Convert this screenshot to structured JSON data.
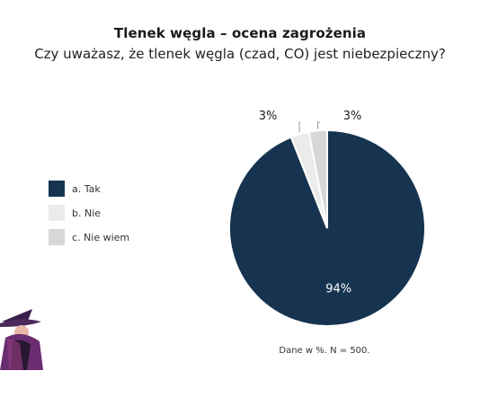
{
  "title": "Tlenek węgla – ocena zagrożenia",
  "subtitle": "Czy uważasz, że tlenek węgla (czad, CO) jest niebezpieczny?",
  "note": "Dane w %. N = 500.",
  "colors": {
    "tak": "#16344f",
    "nie": "#ebebeb",
    "nie_wiem": "#d7d7d7"
  },
  "chart_data": {
    "type": "pie",
    "title": "Tlenek węgla – ocena zagrożenia",
    "categories": [
      "a. Tak",
      "b. Nie",
      "c. Nie wiem"
    ],
    "values": [
      94,
      3,
      3
    ],
    "data_labels": [
      "94%",
      "3%",
      "3%"
    ],
    "legend_placement": "left"
  }
}
